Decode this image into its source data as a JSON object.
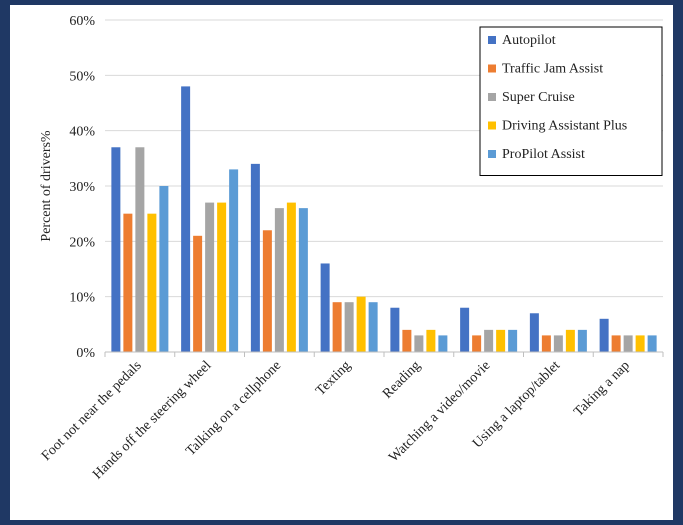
{
  "chart_data": {
    "type": "bar",
    "title": "",
    "xlabel": "",
    "ylabel": "Percent of drivers%",
    "ylim": [
      0,
      60
    ],
    "yticks": [
      "0%",
      "10%",
      "20%",
      "30%",
      "40%",
      "50%",
      "60%"
    ],
    "grid": true,
    "legend_position": "top-right",
    "categories": [
      "Foot not near the pedals",
      "Hands off the steering wheel",
      "Talking on a cellphone",
      "Texting",
      "Reading",
      "Watching a video/movie",
      "Using a laptop/tablet",
      "Taking a nap"
    ],
    "series": [
      {
        "name": "Autopilot",
        "color": "#4472c4",
        "values": [
          37,
          48,
          34,
          16,
          8,
          8,
          7,
          6
        ]
      },
      {
        "name": "Traffic Jam Assist",
        "color": "#ed7d31",
        "values": [
          25,
          21,
          22,
          9,
          4,
          3,
          3,
          3
        ]
      },
      {
        "name": "Super Cruise",
        "color": "#a5a5a5",
        "values": [
          37,
          27,
          26,
          9,
          3,
          4,
          3,
          3
        ]
      },
      {
        "name": "Driving Assistant Plus",
        "color": "#ffc000",
        "values": [
          25,
          27,
          27,
          10,
          4,
          4,
          4,
          3
        ]
      },
      {
        "name": "ProPilot Assist",
        "color": "#5b9bd5",
        "values": [
          30,
          33,
          26,
          9,
          3,
          4,
          4,
          3
        ]
      }
    ]
  }
}
